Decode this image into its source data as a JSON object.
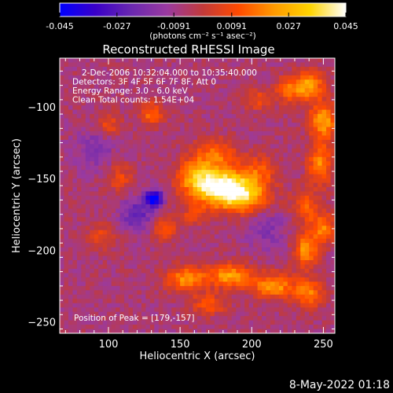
{
  "chart_data": {
    "type": "heatmap",
    "title": "Reconstructed RHESSI Image",
    "xlabel": "Heliocentric X (arcsec)",
    "ylabel": "Heliocentric Y (arcsec)",
    "xlim": [
      66,
      258
    ],
    "ylim": [
      -258,
      -66
    ],
    "x_ticks": [
      100,
      150,
      200,
      250
    ],
    "y_ticks": [
      -100,
      -150,
      -200,
      -250
    ],
    "colorbar": {
      "range": [
        -0.045,
        0.045
      ],
      "ticks": [
        "-0.045",
        "-0.027",
        "-0.0091",
        "0.0091",
        "0.027",
        "0.045"
      ],
      "tick_values": [
        -0.045,
        -0.027,
        -0.0091,
        0.0091,
        0.027,
        0.045
      ],
      "label": "(photons cm⁻² s⁻¹ asec⁻²)",
      "colors": [
        "#0000ff",
        "#3a00c8",
        "#6a28b0",
        "#9a3aa0",
        "#c23a3a",
        "#ff4a00",
        "#ff9a00",
        "#ffd400",
        "#ffffff"
      ]
    },
    "annotations": [
      "2-Dec-2006 10:32:04.000 to 10:35:40.000",
      "Detectors: 3F 4F 5F 6F 7F 8F, Att 0",
      "Energy Range: 3.0 - 6.0 keV",
      "Clean    Total counts: 1.54E+04"
    ],
    "peak_label": "Position of Peak = [179,-157]",
    "peak": [
      179,
      -157
    ],
    "sources": [
      {
        "x": 179,
        "y": -156,
        "amp": 0.047,
        "sx": 14,
        "sy": 9
      },
      {
        "x": 195,
        "y": -163,
        "amp": 0.028,
        "sx": 12,
        "sy": 8
      },
      {
        "x": 162,
        "y": -148,
        "amp": 0.025,
        "sx": 10,
        "sy": 9
      },
      {
        "x": 175,
        "y": -132,
        "amp": 0.02,
        "sx": 10,
        "sy": 7
      },
      {
        "x": 205,
        "y": -145,
        "amp": 0.016,
        "sx": 9,
        "sy": 8
      },
      {
        "x": 240,
        "y": -85,
        "amp": 0.032,
        "sx": 7,
        "sy": 7
      },
      {
        "x": 250,
        "y": -110,
        "amp": 0.03,
        "sx": 7,
        "sy": 9
      },
      {
        "x": 248,
        "y": -140,
        "amp": 0.026,
        "sx": 6,
        "sy": 10
      },
      {
        "x": 225,
        "y": -88,
        "amp": 0.022,
        "sx": 6,
        "sy": 6
      },
      {
        "x": 238,
        "y": -170,
        "amp": 0.018,
        "sx": 7,
        "sy": 8
      },
      {
        "x": 238,
        "y": -200,
        "amp": 0.028,
        "sx": 6,
        "sy": 8
      },
      {
        "x": 250,
        "y": -185,
        "amp": 0.024,
        "sx": 6,
        "sy": 7
      },
      {
        "x": 215,
        "y": -225,
        "amp": 0.03,
        "sx": 10,
        "sy": 6
      },
      {
        "x": 185,
        "y": -218,
        "amp": 0.03,
        "sx": 10,
        "sy": 6
      },
      {
        "x": 155,
        "y": -220,
        "amp": 0.028,
        "sx": 10,
        "sy": 6
      },
      {
        "x": 240,
        "y": -230,
        "amp": 0.024,
        "sx": 7,
        "sy": 7
      },
      {
        "x": 170,
        "y": -238,
        "amp": 0.018,
        "sx": 9,
        "sy": 5
      },
      {
        "x": 130,
        "y": -105,
        "amp": 0.02,
        "sx": 6,
        "sy": 6
      },
      {
        "x": 100,
        "y": -112,
        "amp": 0.015,
        "sx": 6,
        "sy": 6
      },
      {
        "x": 108,
        "y": -150,
        "amp": 0.014,
        "sx": 6,
        "sy": 7
      },
      {
        "x": 140,
        "y": -185,
        "amp": 0.018,
        "sx": 6,
        "sy": 6
      },
      {
        "x": 95,
        "y": -190,
        "amp": 0.014,
        "sx": 6,
        "sy": 6
      },
      {
        "x": 205,
        "y": -95,
        "amp": 0.015,
        "sx": 7,
        "sy": 5
      },
      {
        "x": 160,
        "y": -175,
        "amp": 0.014,
        "sx": 6,
        "sy": 5
      },
      {
        "x": 132,
        "y": -164,
        "amp": -0.045,
        "sx": 4,
        "sy": 4
      },
      {
        "x": 120,
        "y": -175,
        "amp": -0.018,
        "sx": 8,
        "sy": 8
      },
      {
        "x": 90,
        "y": -130,
        "amp": -0.012,
        "sx": 9,
        "sy": 9
      },
      {
        "x": 210,
        "y": -185,
        "amp": -0.01,
        "sx": 10,
        "sy": 10
      }
    ],
    "background": -0.006
  },
  "timestamp": "8-May-2022 01:18"
}
